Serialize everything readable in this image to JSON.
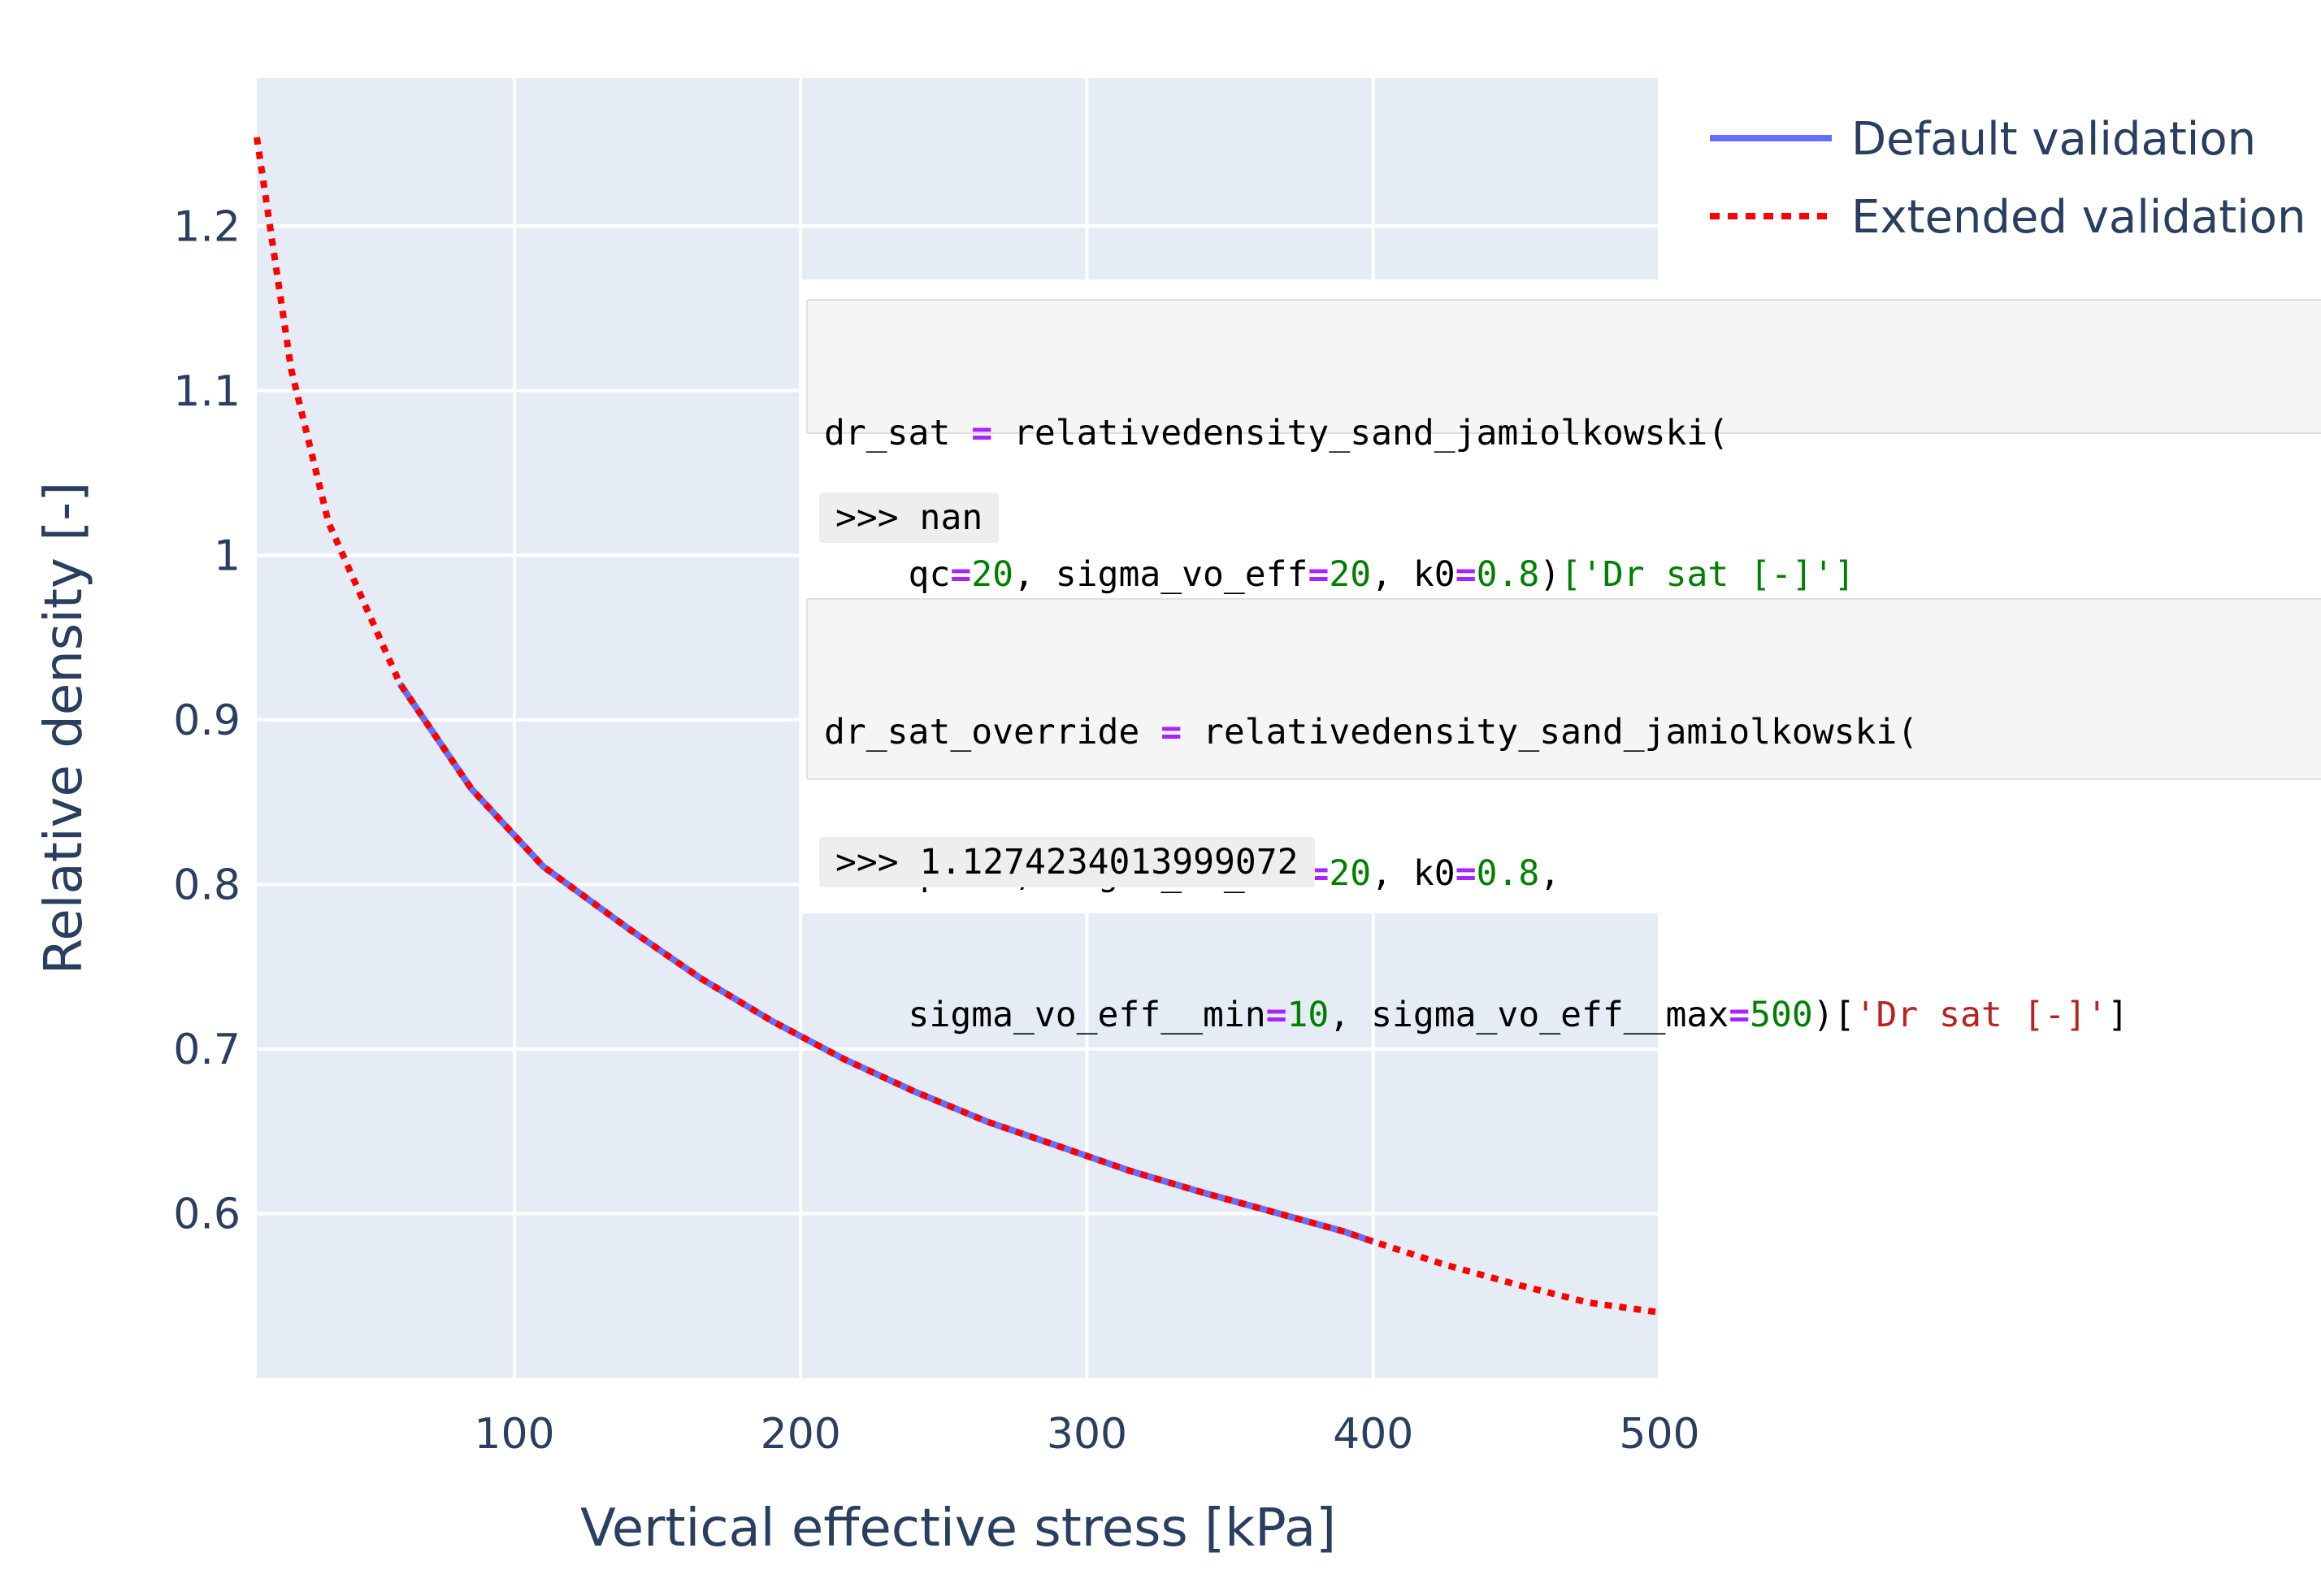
{
  "chart_data": {
    "type": "line",
    "xlabel": "Vertical effective stress [kPa]",
    "ylabel": "Relative density [-]",
    "xlim": [
      10,
      500
    ],
    "ylim": [
      0.5,
      1.29
    ],
    "xticks": [
      100,
      200,
      300,
      400,
      500
    ],
    "ytick_values": [
      0.6,
      0.7,
      0.8,
      0.9,
      1.0,
      1.1,
      1.2
    ],
    "ytick_labels": [
      "0.6",
      "0.7",
      "0.8",
      "0.9",
      "1",
      "1.1",
      "1.2"
    ],
    "plot_bgcolor": "#e5ecf6",
    "grid": true,
    "legend_position": "top-right",
    "series": [
      {
        "name": "Default validation",
        "color": "#636efa",
        "dash": "solid",
        "x": [
          60,
          85,
          110,
          140,
          165,
          190,
          215,
          240,
          265,
          290,
          315,
          340,
          365,
          390,
          400
        ],
        "y": [
          0.922,
          0.858,
          0.811,
          0.773,
          0.743,
          0.717,
          0.694,
          0.674,
          0.656,
          0.641,
          0.626,
          0.613,
          0.601,
          0.589,
          0.583
        ]
      },
      {
        "name": "Extended validation",
        "color": "#ff0000",
        "dash": "dot",
        "x": [
          10,
          22,
          35,
          48,
          60,
          85,
          110,
          140,
          165,
          190,
          215,
          240,
          265,
          290,
          315,
          340,
          365,
          390,
          400,
          425,
          450,
          475,
          500
        ],
        "y": [
          1.254,
          1.113,
          1.02,
          0.969,
          0.922,
          0.858,
          0.811,
          0.773,
          0.743,
          0.717,
          0.694,
          0.674,
          0.656,
          0.641,
          0.626,
          0.613,
          0.601,
          0.589,
          0.583,
          0.569,
          0.557,
          0.546,
          0.54
        ]
      }
    ]
  },
  "code": {
    "block1": {
      "line1": {
        "a": "dr_sat ",
        "op1": "=",
        "b": " relativedensity_sand_jamiolkowski("
      },
      "line2": {
        "a": "    qc",
        "op1": "=",
        "n1": "20",
        "b": ", sigma_vo_eff",
        "op2": "=",
        "n2": "20",
        "c": ", k0",
        "op3": "=",
        "n3": "0.8",
        "d": ")",
        "e": "['Dr sat [-]']"
      }
    },
    "output1": ">>> nan",
    "block2": {
      "line1": {
        "a": "dr_sat_override ",
        "op1": "=",
        "b": " relativedensity_sand_jamiolkowski("
      },
      "line2": {
        "a": "    qc",
        "op1": "=",
        "n1": "20",
        "b": ", sigma_vo_eff",
        "op2": "=",
        "n2": "20",
        "c": ", k0",
        "op3": "=",
        "n3": "0.8",
        "d": ","
      },
      "line3": {
        "a": "    sigma_vo_eff__min",
        "op1": "=",
        "n1": "10",
        "b": ", sigma_vo_eff__max",
        "op2": "=",
        "n2": "500",
        "c": ")[",
        "s": "'Dr sat [-]'",
        "d": "]"
      }
    },
    "output2": ">>> 1.1274234013999072"
  }
}
